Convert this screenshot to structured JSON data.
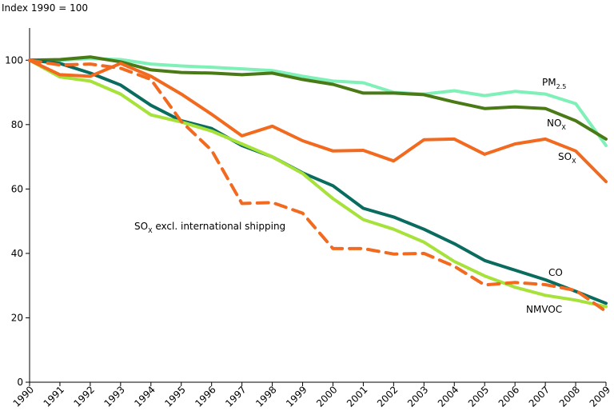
{
  "chart_data": {
    "type": "line",
    "title": "",
    "ylabel": "Index 1990 = 100",
    "xlabel": "",
    "ylim": [
      0,
      110
    ],
    "y_ticks": [
      0,
      20,
      40,
      60,
      80,
      100
    ],
    "x": [
      "1990",
      "1991",
      "1992",
      "1993",
      "1994",
      "1995",
      "1996",
      "1997",
      "1998",
      "1999",
      "2000",
      "2001",
      "2002",
      "2003",
      "2004",
      "2005",
      "2006",
      "2007",
      "2008",
      "2009"
    ],
    "grid": false,
    "legend": "labels placed next to lines",
    "series": [
      {
        "name": "PM",
        "subscript": "2.5",
        "color": "#7ef0b8",
        "dashed": false,
        "values": [
          100,
          100,
          100.5,
          100.2,
          98.8,
          98.2,
          97.8,
          97.3,
          96.8,
          95,
          93.5,
          93,
          90,
          89.5,
          90.5,
          89,
          90.3,
          89.5,
          86.5,
          73.5
        ]
      },
      {
        "name": "NO",
        "subscript": "X",
        "color": "#4a7a16",
        "dashed": false,
        "values": [
          100,
          100.2,
          101,
          99.5,
          97,
          96.2,
          96,
          95.5,
          96,
          94,
          92.5,
          89.8,
          89.8,
          89.3,
          87,
          85,
          85.5,
          85,
          81.2,
          75.5
        ]
      },
      {
        "name": "SO",
        "subscript": "X",
        "color": "#f26a1f",
        "dashed": false,
        "values": [
          100,
          95.5,
          95,
          99,
          95,
          89.5,
          83.2,
          76.5,
          79.5,
          75,
          71.8,
          72,
          68.7,
          75.3,
          75.5,
          70.8,
          74,
          75.5,
          71.8,
          62.3
        ]
      },
      {
        "name": "SO",
        "subscript": "X",
        "suffix": " excl. international shipping",
        "color": "#f26a1f",
        "dashed": true,
        "values": [
          100,
          98.5,
          98.8,
          97.5,
          94,
          81,
          72,
          55.5,
          55.8,
          52.5,
          41.5,
          41.5,
          39.8,
          40,
          36,
          30.2,
          31,
          30.3,
          28.5,
          22
        ]
      },
      {
        "name": "CO",
        "color": "#0a6b5f",
        "dashed": false,
        "values": [
          100,
          99,
          96,
          92.3,
          86,
          81.2,
          78.8,
          73.5,
          70,
          65,
          61,
          54,
          51.3,
          47.5,
          43,
          37.8,
          34.8,
          31.8,
          28.2,
          24.5
        ]
      },
      {
        "name": "NMVOC",
        "color": "#a6e23a",
        "dashed": false,
        "values": [
          100,
          94.8,
          93.5,
          89.5,
          83,
          80.8,
          78,
          74,
          70,
          64.8,
          57,
          50.5,
          47.5,
          43.5,
          37.5,
          33,
          29.5,
          27,
          25.5,
          23.5
        ]
      }
    ]
  }
}
